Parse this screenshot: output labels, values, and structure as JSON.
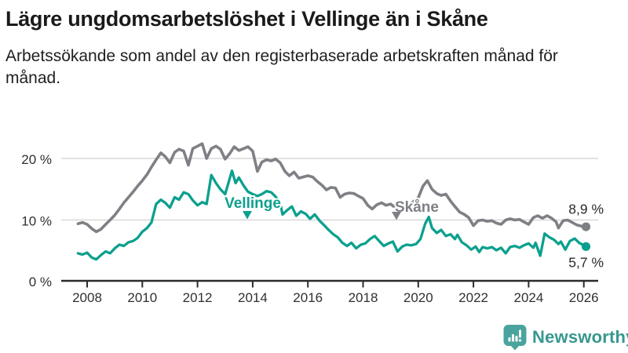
{
  "chart_data": {
    "type": "line",
    "title": "Lägre ungdomsarbetslöshet i Vellinge än i Skåne",
    "subtitle": "Arbetssökande som andel av den registerbaserade arbetskraften månad för månad.",
    "unit": "%",
    "grid": "horizontal",
    "legend_position": "inline-labels",
    "xlim": [
      2007.5,
      2026.5
    ],
    "ylim": [
      0,
      23.5
    ],
    "x_tick_labels": [
      "2008",
      "2010",
      "2012",
      "2014",
      "2016",
      "2018",
      "2020",
      "2022",
      "2024",
      "2026"
    ],
    "x_tick_values": [
      2008,
      2010,
      2012,
      2014,
      2016,
      2018,
      2020,
      2022,
      2024,
      2026
    ],
    "y_tick_labels": [
      "20 %",
      "10 %",
      "0 %"
    ],
    "y_tick_values": [
      20,
      10,
      0
    ],
    "colors": {
      "grid": "#dbdbdb",
      "axis": "#2b2b2b",
      "text": "#303030"
    },
    "series": [
      {
        "name": "Skåne",
        "color": "#7e8085",
        "end_label": "8,9 %",
        "end_value": 8.9,
        "points": [
          [
            2007.67,
            9.4
          ],
          [
            2007.83,
            9.6
          ],
          [
            2008.0,
            9.3
          ],
          [
            2008.17,
            8.6
          ],
          [
            2008.33,
            8.1
          ],
          [
            2008.5,
            8.5
          ],
          [
            2008.67,
            9.3
          ],
          [
            2008.83,
            10.0
          ],
          [
            2009.0,
            10.8
          ],
          [
            2009.17,
            11.8
          ],
          [
            2009.33,
            12.8
          ],
          [
            2009.5,
            13.7
          ],
          [
            2009.67,
            14.6
          ],
          [
            2009.83,
            15.5
          ],
          [
            2010.0,
            16.4
          ],
          [
            2010.17,
            17.4
          ],
          [
            2010.33,
            18.6
          ],
          [
            2010.5,
            19.8
          ],
          [
            2010.67,
            20.9
          ],
          [
            2010.83,
            20.3
          ],
          [
            2011.0,
            19.3
          ],
          [
            2011.17,
            21.0
          ],
          [
            2011.33,
            21.5
          ],
          [
            2011.5,
            21.2
          ],
          [
            2011.67,
            18.9
          ],
          [
            2011.83,
            21.6
          ],
          [
            2012.0,
            22.0
          ],
          [
            2012.17,
            22.4
          ],
          [
            2012.33,
            20.0
          ],
          [
            2012.5,
            21.6
          ],
          [
            2012.67,
            22.0
          ],
          [
            2012.83,
            21.5
          ],
          [
            2013.0,
            19.9
          ],
          [
            2013.17,
            20.8
          ],
          [
            2013.33,
            21.9
          ],
          [
            2013.5,
            21.3
          ],
          [
            2013.67,
            21.6
          ],
          [
            2013.83,
            21.9
          ],
          [
            2014.0,
            21.2
          ],
          [
            2014.17,
            17.9
          ],
          [
            2014.33,
            19.4
          ],
          [
            2014.5,
            19.8
          ],
          [
            2014.67,
            19.6
          ],
          [
            2014.83,
            19.9
          ],
          [
            2015.0,
            19.3
          ],
          [
            2015.17,
            17.9
          ],
          [
            2015.33,
            17.2
          ],
          [
            2015.5,
            17.8
          ],
          [
            2015.67,
            16.8
          ],
          [
            2015.83,
            17.0
          ],
          [
            2016.0,
            17.2
          ],
          [
            2016.17,
            17.0
          ],
          [
            2016.33,
            16.3
          ],
          [
            2016.5,
            15.7
          ],
          [
            2016.67,
            14.9
          ],
          [
            2016.83,
            15.3
          ],
          [
            2017.0,
            15.2
          ],
          [
            2017.17,
            13.7
          ],
          [
            2017.33,
            14.2
          ],
          [
            2017.5,
            14.4
          ],
          [
            2017.67,
            14.3
          ],
          [
            2017.83,
            13.9
          ],
          [
            2018.0,
            13.5
          ],
          [
            2018.17,
            12.4
          ],
          [
            2018.33,
            11.8
          ],
          [
            2018.5,
            12.5
          ],
          [
            2018.67,
            12.8
          ],
          [
            2018.83,
            12.4
          ],
          [
            2019.0,
            12.6
          ],
          [
            2019.17,
            12.0
          ],
          [
            2019.33,
            11.6
          ],
          [
            2019.5,
            12.0
          ],
          [
            2019.67,
            12.4
          ],
          [
            2019.83,
            13.0
          ],
          [
            2020.0,
            13.6
          ],
          [
            2020.17,
            15.5
          ],
          [
            2020.33,
            16.4
          ],
          [
            2020.5,
            15.0
          ],
          [
            2020.67,
            14.3
          ],
          [
            2020.83,
            14.0
          ],
          [
            2021.0,
            14.2
          ],
          [
            2021.17,
            13.1
          ],
          [
            2021.33,
            12.2
          ],
          [
            2021.5,
            11.3
          ],
          [
            2021.67,
            10.9
          ],
          [
            2021.83,
            10.4
          ],
          [
            2022.0,
            9.1
          ],
          [
            2022.17,
            9.9
          ],
          [
            2022.33,
            10.0
          ],
          [
            2022.5,
            9.8
          ],
          [
            2022.67,
            9.9
          ],
          [
            2022.83,
            9.5
          ],
          [
            2023.0,
            9.3
          ],
          [
            2023.17,
            10.0
          ],
          [
            2023.33,
            10.2
          ],
          [
            2023.5,
            10.0
          ],
          [
            2023.67,
            10.1
          ],
          [
            2023.83,
            9.7
          ],
          [
            2024.0,
            9.3
          ],
          [
            2024.17,
            10.4
          ],
          [
            2024.33,
            10.7
          ],
          [
            2024.5,
            10.3
          ],
          [
            2024.67,
            10.7
          ],
          [
            2024.83,
            10.3
          ],
          [
            2025.0,
            9.7
          ],
          [
            2025.08,
            8.7
          ],
          [
            2025.25,
            9.9
          ],
          [
            2025.42,
            10.0
          ],
          [
            2025.58,
            9.6
          ],
          [
            2025.75,
            9.2
          ],
          [
            2025.92,
            9.0
          ],
          [
            2026.08,
            8.9
          ]
        ]
      },
      {
        "name": "Vellinge",
        "color": "#0ca08e",
        "end_label": "5,7 %",
        "end_value": 5.7,
        "points": [
          [
            2007.67,
            4.6
          ],
          [
            2007.83,
            4.4
          ],
          [
            2008.0,
            4.7
          ],
          [
            2008.17,
            3.9
          ],
          [
            2008.33,
            3.6
          ],
          [
            2008.5,
            4.3
          ],
          [
            2008.67,
            4.9
          ],
          [
            2008.83,
            4.6
          ],
          [
            2009.0,
            5.4
          ],
          [
            2009.17,
            6.0
          ],
          [
            2009.33,
            5.8
          ],
          [
            2009.5,
            6.4
          ],
          [
            2009.67,
            6.6
          ],
          [
            2009.83,
            7.1
          ],
          [
            2010.0,
            8.1
          ],
          [
            2010.17,
            8.7
          ],
          [
            2010.33,
            9.6
          ],
          [
            2010.5,
            12.6
          ],
          [
            2010.67,
            13.3
          ],
          [
            2010.83,
            12.8
          ],
          [
            2011.0,
            12.0
          ],
          [
            2011.17,
            13.7
          ],
          [
            2011.33,
            13.3
          ],
          [
            2011.5,
            14.5
          ],
          [
            2011.67,
            14.2
          ],
          [
            2011.83,
            13.2
          ],
          [
            2012.0,
            12.4
          ],
          [
            2012.17,
            12.9
          ],
          [
            2012.33,
            12.6
          ],
          [
            2012.5,
            17.3
          ],
          [
            2012.67,
            16.0
          ],
          [
            2012.83,
            15.0
          ],
          [
            2013.0,
            14.2
          ],
          [
            2013.25,
            18.0
          ],
          [
            2013.38,
            16.0
          ],
          [
            2013.5,
            16.9
          ],
          [
            2013.67,
            15.6
          ],
          [
            2013.83,
            14.6
          ],
          [
            2014.0,
            14.2
          ],
          [
            2014.17,
            13.9
          ],
          [
            2014.33,
            14.2
          ],
          [
            2014.5,
            14.7
          ],
          [
            2014.67,
            14.5
          ],
          [
            2014.83,
            13.8
          ],
          [
            2015.0,
            12.8
          ],
          [
            2015.08,
            10.9
          ],
          [
            2015.25,
            11.6
          ],
          [
            2015.42,
            12.2
          ],
          [
            2015.58,
            10.7
          ],
          [
            2015.75,
            11.4
          ],
          [
            2015.92,
            11.0
          ],
          [
            2016.08,
            10.2
          ],
          [
            2016.25,
            10.9
          ],
          [
            2016.42,
            9.9
          ],
          [
            2016.58,
            9.2
          ],
          [
            2016.75,
            8.4
          ],
          [
            2016.92,
            7.7
          ],
          [
            2017.08,
            7.2
          ],
          [
            2017.25,
            6.3
          ],
          [
            2017.42,
            5.8
          ],
          [
            2017.58,
            6.3
          ],
          [
            2017.75,
            5.4
          ],
          [
            2017.92,
            6.0
          ],
          [
            2018.08,
            6.2
          ],
          [
            2018.25,
            6.9
          ],
          [
            2018.42,
            7.4
          ],
          [
            2018.58,
            6.6
          ],
          [
            2018.75,
            5.8
          ],
          [
            2018.92,
            6.2
          ],
          [
            2019.08,
            6.5
          ],
          [
            2019.25,
            4.9
          ],
          [
            2019.42,
            5.7
          ],
          [
            2019.58,
            6.0
          ],
          [
            2019.75,
            5.9
          ],
          [
            2019.92,
            6.1
          ],
          [
            2020.08,
            6.9
          ],
          [
            2020.25,
            9.4
          ],
          [
            2020.38,
            10.5
          ],
          [
            2020.5,
            8.7
          ],
          [
            2020.67,
            7.9
          ],
          [
            2020.83,
            8.4
          ],
          [
            2021.0,
            7.4
          ],
          [
            2021.17,
            7.7
          ],
          [
            2021.33,
            6.9
          ],
          [
            2021.42,
            7.6
          ],
          [
            2021.58,
            6.4
          ],
          [
            2021.75,
            5.9
          ],
          [
            2021.92,
            5.2
          ],
          [
            2022.08,
            5.7
          ],
          [
            2022.21,
            4.8
          ],
          [
            2022.33,
            5.6
          ],
          [
            2022.5,
            5.4
          ],
          [
            2022.67,
            5.6
          ],
          [
            2022.83,
            5.1
          ],
          [
            2023.0,
            5.5
          ],
          [
            2023.17,
            4.6
          ],
          [
            2023.33,
            5.6
          ],
          [
            2023.5,
            5.8
          ],
          [
            2023.67,
            5.5
          ],
          [
            2023.83,
            5.9
          ],
          [
            2024.0,
            6.2
          ],
          [
            2024.17,
            5.5
          ],
          [
            2024.25,
            6.3
          ],
          [
            2024.42,
            4.2
          ],
          [
            2024.58,
            7.8
          ],
          [
            2024.75,
            7.2
          ],
          [
            2024.92,
            6.8
          ],
          [
            2025.08,
            6.1
          ],
          [
            2025.17,
            6.5
          ],
          [
            2025.33,
            5.2
          ],
          [
            2025.5,
            6.6
          ],
          [
            2025.67,
            7.0
          ],
          [
            2025.83,
            6.3
          ],
          [
            2026.08,
            5.7
          ]
        ]
      }
    ]
  },
  "branding": {
    "name": "Newsworthy",
    "wordmark_color": "#37988f",
    "icon_color": "#4aa49d"
  }
}
